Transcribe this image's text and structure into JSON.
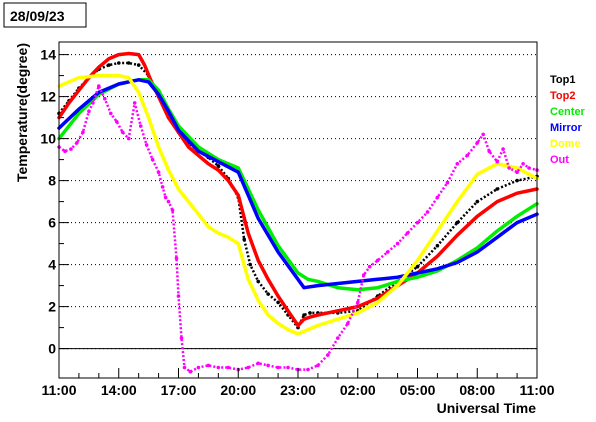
{
  "chart_data": {
    "type": "line",
    "title": "28/09/23",
    "xlabel": "Universal Time",
    "ylabel": "Temperature(degree)",
    "x_ticks": [
      "11:00",
      "14:00",
      "17:00",
      "20:00",
      "23:00",
      "02:00",
      "05:00",
      "08:00",
      "11:00"
    ],
    "x_tick_hours": [
      0,
      3,
      6,
      9,
      12,
      15,
      18,
      21,
      24
    ],
    "xlim": [
      0,
      24
    ],
    "y_ticks": [
      0,
      2,
      4,
      6,
      8,
      10,
      12,
      14
    ],
    "ylim": [
      -1.4,
      14.6
    ],
    "grid": "dotted",
    "legend_position": "right",
    "series": [
      {
        "name": "Top1",
        "color": "#000000",
        "style": "markers",
        "x": [
          0,
          0.5,
          1,
          1.5,
          2,
          2.5,
          3,
          3.5,
          4,
          4.5,
          5,
          5.5,
          6,
          6.5,
          7,
          7.5,
          8,
          8.5,
          9,
          9.3,
          9.6,
          10,
          10.5,
          11,
          11.5,
          12,
          12.3,
          12.6,
          13,
          14,
          15,
          16,
          17,
          18,
          19,
          20,
          21,
          22,
          23,
          24
        ],
        "y": [
          11.2,
          11.8,
          12.4,
          12.9,
          13.3,
          13.5,
          13.6,
          13.6,
          13.5,
          13.0,
          12.0,
          11.0,
          10.3,
          9.8,
          9.4,
          9.1,
          8.7,
          8.1,
          7.2,
          5.2,
          4.0,
          3.2,
          2.6,
          2.2,
          1.6,
          1.0,
          1.6,
          1.7,
          1.7,
          1.7,
          1.8,
          2.5,
          3.2,
          3.9,
          4.9,
          6.0,
          7.0,
          7.6,
          8.0,
          8.2
        ]
      },
      {
        "name": "Top2",
        "color": "#ff0000",
        "style": "line",
        "x": [
          0,
          0.5,
          1,
          1.5,
          2,
          2.5,
          3,
          3.5,
          4,
          4.3,
          4.6,
          5,
          5.5,
          6,
          6.5,
          7,
          7.5,
          8,
          8.5,
          9,
          9.5,
          10,
          10.5,
          11,
          11.5,
          12,
          12.3,
          12.6,
          13,
          14,
          15,
          16,
          17,
          18,
          19,
          20,
          21,
          22,
          23,
          24
        ],
        "y": [
          11.0,
          11.7,
          12.3,
          12.9,
          13.4,
          13.8,
          14.0,
          14.05,
          14.0,
          13.5,
          12.8,
          12.0,
          11.0,
          10.3,
          9.6,
          9.2,
          8.8,
          8.5,
          8.0,
          7.3,
          5.5,
          4.2,
          3.3,
          2.5,
          1.8,
          1.1,
          1.4,
          1.5,
          1.6,
          1.8,
          2.0,
          2.4,
          3.0,
          3.6,
          4.4,
          5.4,
          6.3,
          7.0,
          7.4,
          7.6
        ]
      },
      {
        "name": "Center",
        "color": "#00ee00",
        "style": "line",
        "x": [
          0,
          1,
          2,
          3,
          4,
          4.5,
          5,
          5.5,
          6,
          7,
          8,
          9,
          10,
          11,
          12,
          12.5,
          13,
          14,
          15,
          16,
          17,
          18,
          19,
          20,
          21,
          22,
          23,
          24
        ],
        "y": [
          10.0,
          11.2,
          12.1,
          12.6,
          12.8,
          12.8,
          12.3,
          11.4,
          10.6,
          9.6,
          9.0,
          8.6,
          6.6,
          4.9,
          3.6,
          3.3,
          3.2,
          2.9,
          2.8,
          2.9,
          3.2,
          3.4,
          3.7,
          4.2,
          4.8,
          5.6,
          6.3,
          6.9
        ]
      },
      {
        "name": "Mirror",
        "color": "#0000ff",
        "style": "line",
        "x": [
          0,
          1,
          2,
          3,
          4,
          4.5,
          5,
          5.5,
          6,
          7,
          8,
          9,
          10,
          11,
          12,
          12.3,
          13,
          14,
          15,
          16,
          17,
          18,
          19,
          20,
          21,
          22,
          23,
          24
        ],
        "y": [
          10.5,
          11.4,
          12.2,
          12.6,
          12.8,
          12.7,
          12.1,
          11.3,
          10.4,
          9.4,
          8.9,
          8.4,
          6.2,
          4.6,
          3.3,
          2.9,
          3.0,
          3.1,
          3.2,
          3.3,
          3.4,
          3.6,
          3.8,
          4.1,
          4.6,
          5.3,
          6.0,
          6.4
        ]
      },
      {
        "name": "Dome",
        "color": "#ffff00",
        "style": "line",
        "x": [
          0,
          1,
          2,
          3,
          3.5,
          4,
          4.5,
          5,
          5.5,
          6,
          6.5,
          7,
          7.5,
          8,
          8.5,
          9,
          9.5,
          10,
          10.5,
          11,
          11.5,
          12,
          13,
          14,
          15,
          16,
          17,
          18,
          19,
          20,
          21,
          22,
          23,
          24
        ],
        "y": [
          12.5,
          12.9,
          13.0,
          13.0,
          12.9,
          12.2,
          11.0,
          9.6,
          8.5,
          7.6,
          7.0,
          6.4,
          5.8,
          5.5,
          5.3,
          5.0,
          3.3,
          2.3,
          1.6,
          1.2,
          0.9,
          0.7,
          1.1,
          1.4,
          1.7,
          2.2,
          3.0,
          4.2,
          5.6,
          7.0,
          8.3,
          8.8,
          8.6,
          8.1
        ]
      },
      {
        "name": "Out",
        "color": "#ff00ff",
        "style": "markers",
        "x": [
          0,
          0.3,
          0.6,
          0.9,
          1.2,
          1.5,
          1.7,
          2.0,
          2.3,
          2.6,
          2.9,
          3.2,
          3.5,
          3.8,
          4.1,
          4.4,
          4.7,
          5.0,
          5.2,
          5.35,
          5.5,
          5.7,
          5.9,
          6.0,
          6.15,
          6.3,
          6.6,
          7,
          7.5,
          8,
          8.5,
          9,
          9.5,
          10,
          10.5,
          11,
          11.5,
          12,
          12.5,
          13,
          13.5,
          14,
          14.5,
          15,
          15.3,
          15.6,
          16,
          16.5,
          17,
          17.5,
          18,
          18.5,
          19,
          19.5,
          20,
          20.5,
          21,
          21.3,
          21.6,
          22,
          22.3,
          22.6,
          23,
          23.3,
          23.6,
          24
        ],
        "y": [
          9.6,
          9.4,
          9.5,
          9.8,
          10.3,
          11.3,
          11.7,
          12.5,
          11.9,
          11.2,
          10.8,
          10.3,
          10.0,
          11.7,
          10.6,
          9.7,
          9.0,
          8.4,
          7.7,
          7.2,
          7.0,
          6.6,
          4.3,
          2.5,
          0.5,
          -0.9,
          -1.1,
          -0.9,
          -0.8,
          -0.9,
          -0.9,
          -1.0,
          -0.9,
          -0.7,
          -0.8,
          -0.9,
          -0.9,
          -1.0,
          -1.0,
          -0.8,
          -0.3,
          0.5,
          1.2,
          2.2,
          3.5,
          3.9,
          4.2,
          4.6,
          5.0,
          5.5,
          6.0,
          6.5,
          7.2,
          7.9,
          8.8,
          9.2,
          9.8,
          10.2,
          9.4,
          8.9,
          9.5,
          8.6,
          8.4,
          8.8,
          8.6,
          8.5
        ]
      }
    ]
  }
}
